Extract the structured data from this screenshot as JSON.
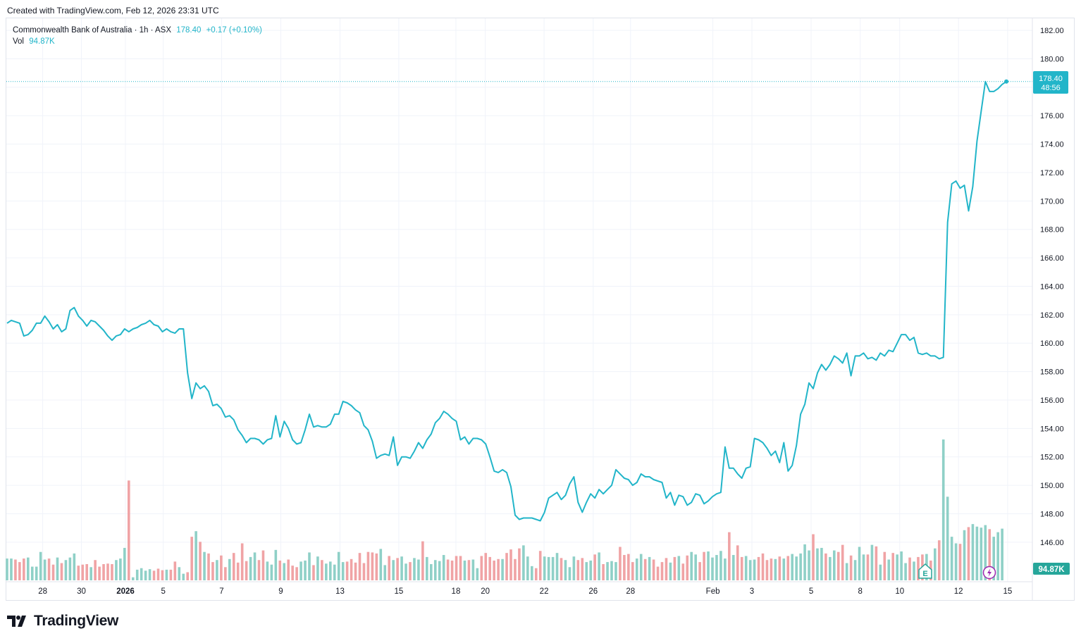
{
  "created": "Created with TradingView.com, Feb 12, 2026 23:31 UTC",
  "legend": {
    "symbol": "Commonwealth Bank of Australia · 1h · ASX",
    "price": "178.40",
    "change": "+0.17 (+0.10%)",
    "vol_label": "Vol",
    "vol_value": "94.87K"
  },
  "price_badge": {
    "price": "178.40",
    "countdown": "48:56"
  },
  "vol_badge": "94.87K",
  "earnings_marker": "E",
  "brand": "TradingView",
  "colors": {
    "line": "#22b5c9",
    "vol_up": "#8fd0c7",
    "vol_down": "#f0a3a5",
    "grid": "#f0f3fa",
    "axis_text": "#131722"
  },
  "chart_data": {
    "type": "line",
    "title": "Commonwealth Bank of Australia · 1h · ASX",
    "xlabel": "",
    "ylabel": "",
    "ylim": [
      145.0,
      182.5
    ],
    "y_ticks": [
      146,
      148,
      150,
      152,
      154,
      156,
      158,
      160,
      162,
      164,
      166,
      168,
      170,
      172,
      174,
      176,
      178,
      180,
      182
    ],
    "y_tick_labels": [
      "146.00",
      "148.00",
      "150.00",
      "152.00",
      "154.00",
      "156.00",
      "158.00",
      "160.00",
      "162.00",
      "164.00",
      "166.00",
      "168.00",
      "170.00",
      "172.00",
      "174.00",
      "176.00",
      "178.00",
      "180.00",
      "182.00"
    ],
    "x_tick_labels": [
      "28",
      "30",
      "2026",
      "5",
      "7",
      "9",
      "13",
      "15",
      "18",
      "20",
      "22",
      "26",
      "28",
      "Feb",
      "3",
      "5",
      "8",
      "10",
      "12",
      "15"
    ],
    "x_tick_index": [
      8.5,
      17.7,
      28.2,
      37.2,
      51.1,
      65.2,
      79.3,
      93.3,
      106.9,
      113.9,
      127.9,
      139.6,
      148.5,
      168.1,
      177.4,
      191.5,
      203.2,
      212.6,
      226.6,
      238.3
    ],
    "x_max_index": 240,
    "series": [
      {
        "values": [
          161.4,
          161.6,
          161.5,
          161.4,
          160.5,
          160.6,
          160.9,
          161.4,
          161.4,
          161.9,
          161.5,
          161.0,
          161.3,
          160.8,
          161.0,
          162.3,
          162.5,
          161.9,
          161.6,
          161.2,
          161.6,
          161.5,
          161.2,
          160.9,
          160.5,
          160.2,
          160.5,
          160.6,
          161.0,
          160.8,
          161.0,
          161.1,
          161.3,
          161.4,
          161.6,
          161.3,
          161.2,
          160.8,
          161.0,
          160.8,
          160.7,
          161.0,
          161.0,
          157.9,
          156.1,
          157.2,
          156.8,
          157.0,
          156.6,
          155.6,
          155.7,
          155.4,
          154.8,
          154.9,
          154.6,
          153.9,
          153.5,
          153.0,
          153.3,
          153.3,
          153.2,
          152.9,
          153.2,
          153.3,
          154.9,
          153.4,
          154.5,
          154.0,
          153.2,
          152.9,
          153.0,
          153.9,
          155.0,
          154.1,
          154.2,
          154.1,
          154.1,
          154.3,
          155.0,
          155.0,
          155.9,
          155.8,
          155.6,
          155.3,
          155.1,
          154.2,
          153.9,
          153.1,
          151.9,
          152.1,
          152.2,
          152.1,
          153.4,
          151.4,
          152.0,
          152.0,
          151.9,
          152.4,
          153.0,
          152.6,
          153.2,
          153.6,
          154.4,
          154.7,
          155.2,
          155.0,
          154.7,
          154.5,
          153.2,
          153.4,
          152.9,
          153.3,
          153.3,
          153.2,
          152.9,
          152.0,
          151.0,
          150.9,
          151.1,
          150.9,
          149.9,
          147.9,
          147.6,
          147.7,
          147.7,
          147.7,
          147.6,
          147.5,
          148.1,
          149.1,
          149.3,
          149.5,
          149.0,
          149.3,
          150.1,
          150.6,
          148.8,
          148.1,
          148.8,
          149.4,
          149.1,
          149.7,
          149.4,
          149.7,
          150.0,
          151.1,
          150.8,
          150.5,
          150.4,
          150.0,
          150.2,
          150.8,
          150.6,
          150.6,
          150.4,
          150.3,
          150.2,
          149.1,
          149.5,
          148.6,
          149.3,
          149.2,
          148.6,
          148.8,
          149.4,
          149.3,
          148.7,
          148.9,
          149.2,
          149.4,
          149.5,
          152.7,
          151.2,
          151.2,
          150.8,
          150.5,
          151.2,
          151.3,
          153.3,
          153.2,
          153.0,
          152.6,
          152.1,
          152.4,
          151.6,
          153.0,
          151.0,
          151.4,
          152.8,
          155.0,
          155.7,
          157.2,
          156.8,
          157.9,
          158.5,
          158.1,
          158.5,
          159.1,
          158.9,
          158.6,
          159.3,
          157.7,
          159.1,
          159.1,
          159.3,
          158.9,
          159.0,
          158.8,
          159.3,
          159.1,
          159.5,
          159.4,
          160.0,
          160.6,
          160.6,
          160.2,
          160.4,
          159.3,
          159.2,
          159.3,
          159.1,
          159.1,
          158.9,
          159.0,
          168.5,
          171.2,
          171.4,
          170.9,
          171.1,
          169.3,
          171.0,
          174.2,
          176.3,
          178.4,
          177.7,
          177.7,
          177.9,
          178.2,
          178.4
        ]
      }
    ],
    "volume": {
      "label": "Vol",
      "values": [
        43,
        43,
        41,
        36,
        43,
        45,
        27,
        27,
        56,
        41,
        43,
        31,
        45,
        34,
        40,
        45,
        53,
        29,
        31,
        32,
        26,
        40,
        27,
        32,
        33,
        32,
        40,
        43,
        64,
        197,
        6,
        21,
        24,
        19,
        22,
        19,
        23,
        20,
        21,
        21,
        37,
        26,
        13,
        16,
        86,
        97,
        76,
        56,
        53,
        36,
        40,
        49,
        26,
        42,
        54,
        35,
        73,
        38,
        46,
        55,
        40,
        59,
        37,
        31,
        60,
        39,
        34,
        41,
        29,
        26,
        37,
        39,
        55,
        30,
        47,
        40,
        33,
        37,
        31,
        56,
        36,
        37,
        42,
        35,
        54,
        34,
        56,
        55,
        53,
        62,
        30,
        48,
        40,
        44,
        47,
        33,
        36,
        44,
        41,
        77,
        46,
        32,
        40,
        38,
        50,
        41,
        39,
        48,
        48,
        39,
        40,
        41,
        24,
        48,
        54,
        46,
        39,
        42,
        42,
        54,
        61,
        42,
        63,
        69,
        47,
        28,
        24,
        58,
        47,
        46,
        46,
        54,
        44,
        40,
        26,
        47,
        40,
        44,
        36,
        39,
        51,
        55,
        32,
        36,
        38,
        36,
        66,
        50,
        52,
        36,
        43,
        52,
        42,
        46,
        41,
        27,
        36,
        44,
        35,
        46,
        48,
        33,
        49,
        56,
        51,
        36,
        56,
        57,
        45,
        50,
        58,
        43,
        95,
        50,
        69,
        46,
        48,
        40,
        41,
        46,
        53,
        40,
        43,
        42,
        47,
        43,
        48,
        52,
        47,
        53,
        71,
        59,
        91,
        63,
        64,
        53,
        46,
        59,
        56,
        70,
        34,
        49,
        40,
        66,
        51,
        51,
        70,
        67,
        31,
        56,
        41,
        54,
        51,
        57,
        34,
        45,
        37,
        46,
        51,
        52,
        39,
        63,
        79,
        278,
        165,
        86,
        73,
        72,
        99,
        105,
        111,
        106,
        104,
        109,
        101,
        86,
        95,
        102
      ]
    }
  }
}
